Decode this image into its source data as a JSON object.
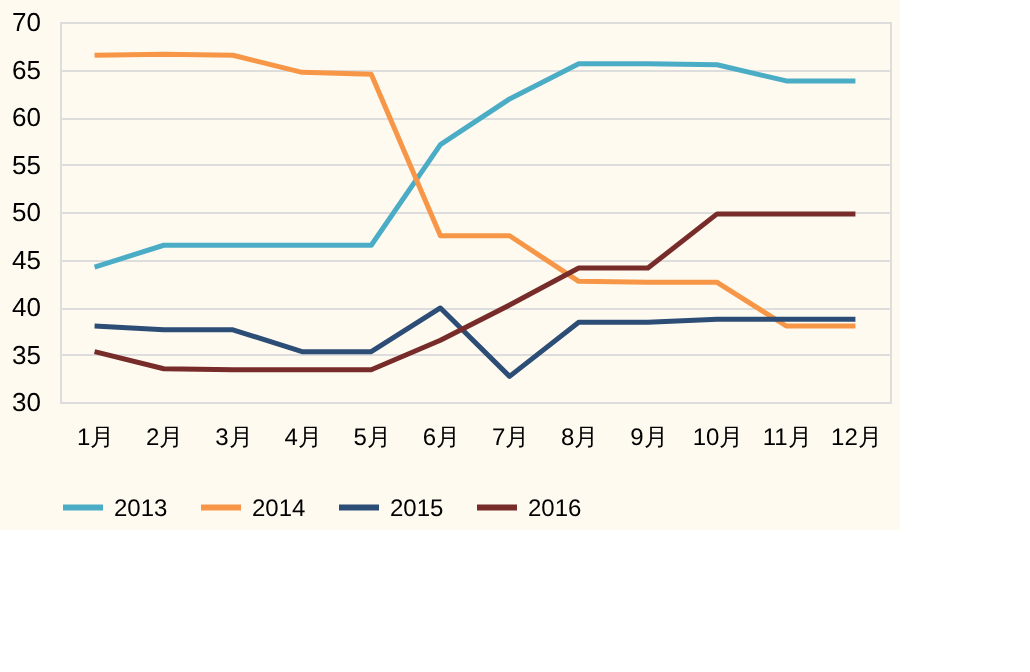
{
  "chart_data": {
    "type": "line",
    "categories": [
      "1月",
      "2月",
      "3月",
      "4月",
      "5月",
      "6月",
      "7月",
      "8月",
      "9月",
      "10月",
      "11月",
      "12月"
    ],
    "series": [
      {
        "name": "2013",
        "color": "#4bacc6",
        "values": [
          44.2,
          46.5,
          46.5,
          46.5,
          46.5,
          57.1,
          61.9,
          65.6,
          65.6,
          65.5,
          63.8,
          63.8
        ]
      },
      {
        "name": "2014",
        "color": "#f79646",
        "values": [
          66.5,
          66.6,
          66.5,
          64.7,
          64.5,
          47.5,
          47.5,
          42.7,
          42.6,
          42.6,
          38.0,
          38.0
        ]
      },
      {
        "name": "2015",
        "color": "#2c4d75",
        "values": [
          38.0,
          37.6,
          37.6,
          35.3,
          35.3,
          39.9,
          32.7,
          38.4,
          38.4,
          38.7,
          38.7,
          38.7
        ]
      },
      {
        "name": "2016",
        "color": "#772c2a",
        "values": [
          35.3,
          33.5,
          33.4,
          33.4,
          33.4,
          36.5,
          40.2,
          44.1,
          44.1,
          49.8,
          49.8,
          49.8
        ]
      }
    ],
    "ylim": [
      30,
      70
    ],
    "yticks": [
      30,
      35,
      40,
      45,
      50,
      55,
      60,
      65,
      70
    ],
    "grid": "y",
    "legend": "bottom",
    "marker": "none",
    "line_style": "solid"
  }
}
